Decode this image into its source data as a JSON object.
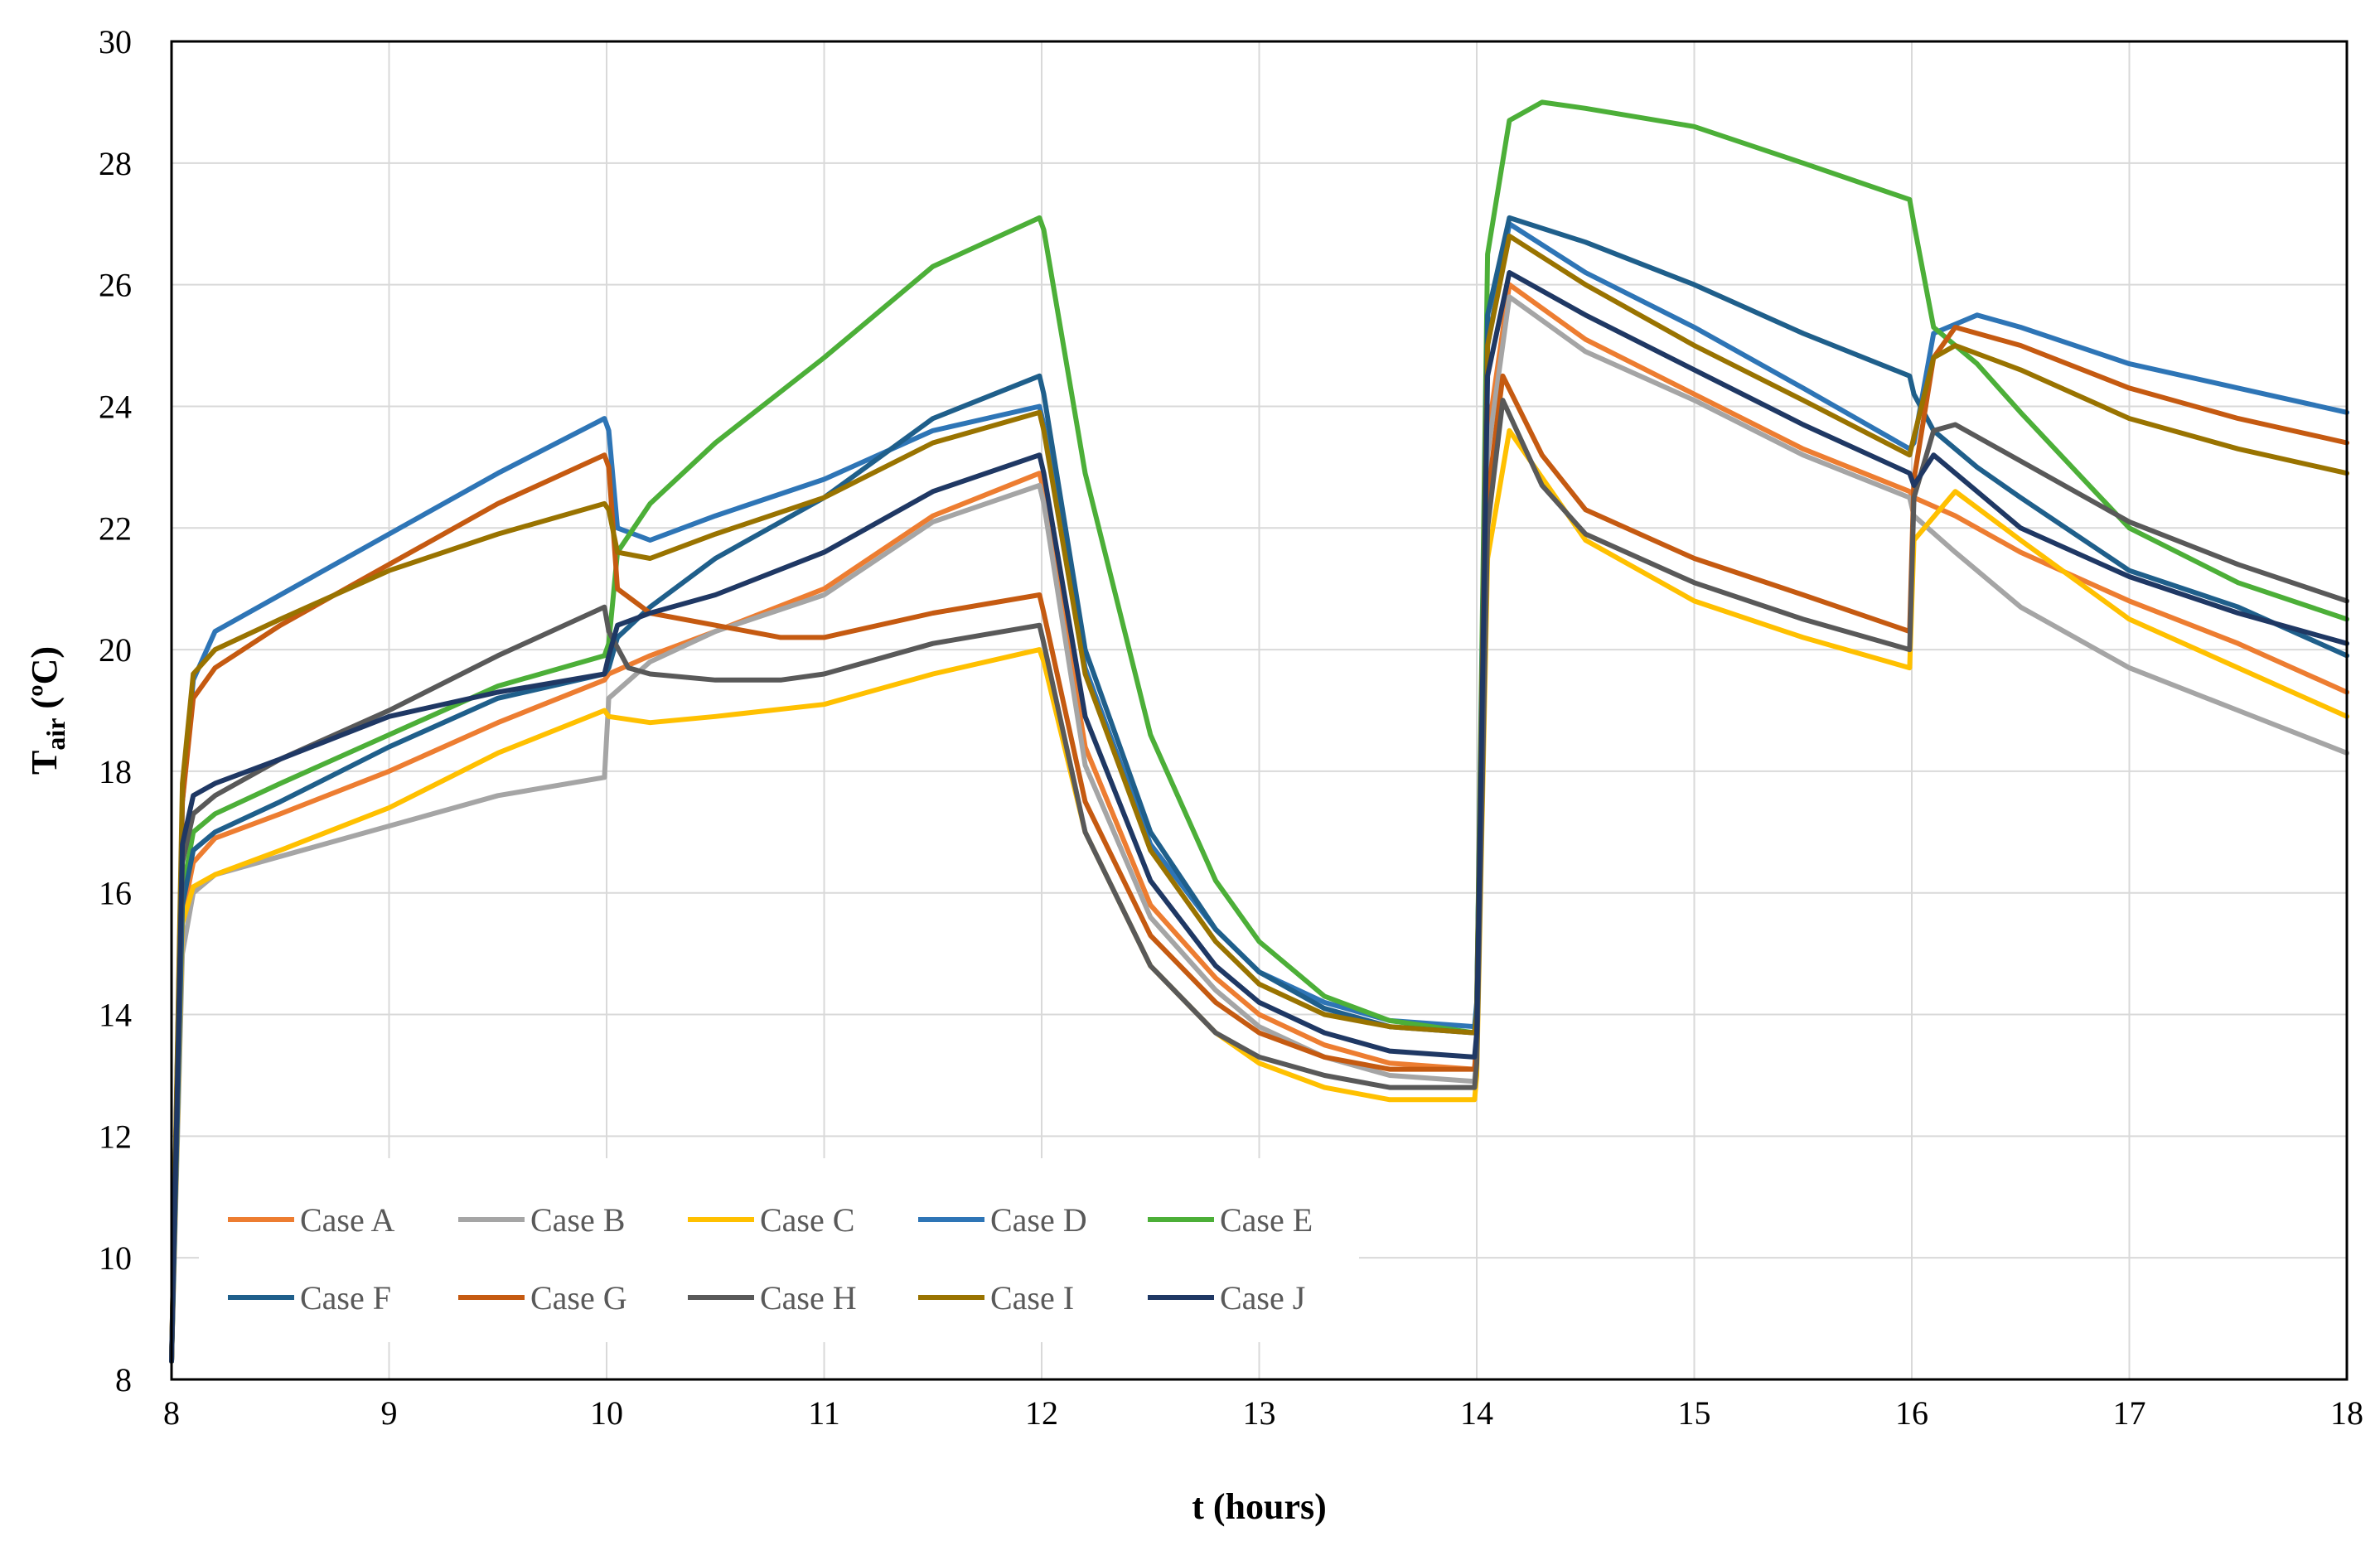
{
  "chart_data": {
    "type": "line",
    "title": "",
    "xlabel": "t (hours)",
    "ylabel_main": "T",
    "ylabel_sub": "air",
    "ylabel_unit": " (ºC)",
    "xlim": [
      8,
      18
    ],
    "ylim": [
      8,
      30
    ],
    "x_ticks": [
      8,
      9,
      10,
      11,
      12,
      13,
      14,
      15,
      16,
      17,
      18
    ],
    "y_ticks": [
      8,
      10,
      12,
      14,
      16,
      18,
      20,
      22,
      24,
      26,
      28,
      30
    ],
    "grid": true,
    "legend_position": "bottom-left",
    "series": [
      {
        "name": "Case A",
        "color": "#ED7D31",
        "x": [
          8.0,
          8.05,
          8.1,
          8.2,
          8.5,
          9.0,
          9.5,
          9.99,
          10.01,
          10.2,
          10.5,
          11.0,
          11.5,
          11.99,
          12.01,
          12.2,
          12.5,
          12.8,
          13.0,
          13.3,
          13.6,
          13.99,
          14.0,
          14.05,
          14.15,
          14.5,
          15.0,
          15.5,
          15.99,
          16.01,
          16.2,
          16.5,
          17.0,
          17.5,
          18.0
        ],
        "y": [
          8.3,
          15.6,
          16.5,
          16.9,
          17.3,
          18.0,
          18.8,
          19.5,
          19.6,
          19.9,
          20.3,
          21.0,
          22.2,
          22.9,
          22.6,
          18.4,
          15.8,
          14.6,
          14.0,
          13.5,
          13.2,
          13.1,
          13.6,
          23.5,
          26.0,
          25.1,
          24.2,
          23.3,
          22.6,
          22.5,
          22.2,
          21.6,
          20.8,
          20.1,
          19.3
        ]
      },
      {
        "name": "Case B",
        "color": "#A5A5A5",
        "x": [
          8.0,
          8.05,
          8.1,
          8.2,
          8.5,
          9.0,
          9.5,
          9.99,
          10.01,
          10.2,
          10.5,
          11.0,
          11.5,
          11.99,
          12.01,
          12.2,
          12.5,
          12.8,
          13.0,
          13.3,
          13.6,
          13.99,
          14.0,
          14.05,
          14.15,
          14.5,
          15.0,
          15.5,
          15.99,
          16.01,
          16.2,
          16.5,
          17.0,
          17.5,
          18.0
        ],
        "y": [
          8.3,
          15.0,
          16.0,
          16.3,
          16.6,
          17.1,
          17.6,
          17.9,
          19.2,
          19.8,
          20.3,
          20.9,
          22.1,
          22.7,
          22.4,
          18.1,
          15.6,
          14.4,
          13.8,
          13.3,
          13.0,
          12.9,
          13.4,
          23.2,
          25.8,
          24.9,
          24.1,
          23.2,
          22.5,
          22.2,
          21.6,
          20.7,
          19.7,
          19.0,
          18.3
        ]
      },
      {
        "name": "Case C",
        "color": "#FFC000",
        "x": [
          8.0,
          8.05,
          8.1,
          8.2,
          8.5,
          9.0,
          9.5,
          9.99,
          10.01,
          10.2,
          10.5,
          11.0,
          11.5,
          11.99,
          12.01,
          12.2,
          12.5,
          12.8,
          13.0,
          13.3,
          13.6,
          13.99,
          14.0,
          14.05,
          14.15,
          14.5,
          15.0,
          15.5,
          15.99,
          16.01,
          16.2,
          16.5,
          17.0,
          17.5,
          18.0
        ],
        "y": [
          8.3,
          15.5,
          16.1,
          16.3,
          16.7,
          17.4,
          18.3,
          19.0,
          18.9,
          18.8,
          18.9,
          19.1,
          19.6,
          20.0,
          19.8,
          17.0,
          14.8,
          13.7,
          13.2,
          12.8,
          12.6,
          12.6,
          13.0,
          21.5,
          23.6,
          21.8,
          20.8,
          20.2,
          19.7,
          21.8,
          22.6,
          21.8,
          20.5,
          19.7,
          18.9
        ]
      },
      {
        "name": "Case D",
        "color": "#2E75B6",
        "x": [
          8.0,
          8.05,
          8.1,
          8.2,
          8.5,
          9.0,
          9.5,
          9.99,
          10.01,
          10.05,
          10.2,
          10.5,
          11.0,
          11.5,
          11.99,
          12.01,
          12.2,
          12.5,
          12.8,
          13.0,
          13.3,
          13.6,
          13.99,
          14.0,
          14.05,
          14.15,
          14.5,
          15.0,
          15.5,
          15.99,
          16.01,
          16.1,
          16.3,
          16.5,
          17.0,
          17.5,
          18.0
        ],
        "y": [
          8.3,
          17.5,
          19.5,
          20.3,
          20.9,
          21.9,
          22.9,
          23.8,
          23.6,
          22.0,
          21.8,
          22.2,
          22.8,
          23.6,
          24.0,
          23.7,
          19.7,
          16.8,
          15.4,
          14.7,
          14.2,
          13.9,
          13.8,
          14.2,
          25.0,
          27.0,
          26.2,
          25.3,
          24.3,
          23.3,
          23.4,
          25.2,
          25.5,
          25.3,
          24.7,
          24.3,
          23.9
        ]
      },
      {
        "name": "Case E",
        "color": "#4CAF38",
        "x": [
          8.0,
          8.05,
          8.1,
          8.2,
          8.5,
          9.0,
          9.5,
          9.99,
          10.01,
          10.05,
          10.2,
          10.5,
          11.0,
          11.5,
          11.99,
          12.01,
          12.2,
          12.5,
          12.8,
          13.0,
          13.3,
          13.6,
          13.99,
          14.0,
          14.05,
          14.15,
          14.3,
          14.5,
          15.0,
          15.5,
          15.99,
          16.01,
          16.1,
          16.3,
          16.5,
          17.0,
          17.5,
          18.0
        ],
        "y": [
          8.3,
          16.0,
          17.0,
          17.3,
          17.8,
          18.6,
          19.4,
          19.9,
          20.1,
          21.6,
          22.4,
          23.4,
          24.8,
          26.3,
          27.1,
          26.9,
          22.9,
          18.6,
          16.2,
          15.2,
          14.3,
          13.9,
          13.7,
          14.1,
          26.5,
          28.7,
          29.0,
          28.9,
          28.6,
          28.0,
          27.4,
          27.0,
          25.3,
          24.7,
          23.9,
          22.0,
          21.1,
          20.5
        ]
      },
      {
        "name": "Case F",
        "color": "#1F5F8B",
        "x": [
          8.0,
          8.05,
          8.1,
          8.2,
          8.5,
          9.0,
          9.5,
          9.99,
          10.01,
          10.05,
          10.2,
          10.5,
          11.0,
          11.5,
          11.99,
          12.01,
          12.2,
          12.5,
          12.8,
          13.0,
          13.3,
          13.6,
          13.99,
          14.0,
          14.05,
          14.15,
          14.5,
          15.0,
          15.5,
          15.99,
          16.01,
          16.1,
          16.3,
          16.5,
          17.0,
          17.5,
          18.0
        ],
        "y": [
          8.3,
          15.8,
          16.7,
          17.0,
          17.5,
          18.4,
          19.2,
          19.6,
          19.7,
          20.2,
          20.7,
          21.5,
          22.5,
          23.8,
          24.5,
          24.2,
          20.0,
          17.0,
          15.4,
          14.7,
          14.1,
          13.8,
          13.7,
          14.1,
          25.5,
          27.1,
          26.7,
          26.0,
          25.2,
          24.5,
          24.2,
          23.6,
          23.0,
          22.5,
          21.3,
          20.7,
          19.9
        ]
      },
      {
        "name": "Case G",
        "color": "#C55A11",
        "x": [
          8.0,
          8.05,
          8.1,
          8.2,
          8.5,
          9.0,
          9.5,
          9.99,
          10.01,
          10.05,
          10.2,
          10.5,
          10.8,
          11.0,
          11.5,
          11.99,
          12.01,
          12.2,
          12.5,
          12.8,
          13.0,
          13.3,
          13.6,
          13.99,
          14.0,
          14.05,
          14.12,
          14.3,
          14.5,
          15.0,
          15.5,
          15.99,
          16.01,
          16.1,
          16.2,
          16.5,
          17.0,
          17.5,
          18.0
        ],
        "y": [
          8.3,
          17.5,
          19.2,
          19.7,
          20.4,
          21.4,
          22.4,
          23.2,
          23.0,
          21.0,
          20.6,
          20.4,
          20.2,
          20.2,
          20.6,
          20.9,
          20.6,
          17.5,
          15.3,
          14.2,
          13.7,
          13.3,
          13.1,
          13.1,
          13.5,
          22.5,
          24.5,
          23.2,
          22.3,
          21.5,
          20.9,
          20.3,
          22.8,
          24.8,
          25.3,
          25.0,
          24.3,
          23.8,
          23.4
        ]
      },
      {
        "name": "Case H",
        "color": "#595959",
        "x": [
          8.0,
          8.05,
          8.1,
          8.2,
          8.5,
          9.0,
          9.5,
          9.99,
          10.01,
          10.1,
          10.2,
          10.5,
          10.8,
          11.0,
          11.5,
          11.99,
          12.01,
          12.2,
          12.5,
          12.8,
          13.0,
          13.3,
          13.6,
          13.99,
          14.0,
          14.05,
          14.12,
          14.3,
          14.5,
          15.0,
          15.5,
          15.99,
          16.01,
          16.1,
          16.2,
          16.5,
          17.0,
          17.5,
          18.0
        ],
        "y": [
          8.3,
          16.5,
          17.3,
          17.6,
          18.2,
          19.0,
          19.9,
          20.7,
          20.3,
          19.7,
          19.6,
          19.5,
          19.5,
          19.6,
          20.1,
          20.4,
          20.1,
          17.0,
          14.8,
          13.7,
          13.3,
          13.0,
          12.8,
          12.8,
          13.2,
          22.0,
          24.1,
          22.7,
          21.9,
          21.1,
          20.5,
          20.0,
          22.5,
          23.6,
          23.7,
          23.1,
          22.1,
          21.4,
          20.8
        ]
      },
      {
        "name": "Case I",
        "color": "#997300",
        "x": [
          8.0,
          8.05,
          8.1,
          8.2,
          8.5,
          9.0,
          9.5,
          9.99,
          10.01,
          10.05,
          10.2,
          10.5,
          11.0,
          11.5,
          11.99,
          12.01,
          12.2,
          12.5,
          12.8,
          13.0,
          13.3,
          13.6,
          13.99,
          14.0,
          14.05,
          14.15,
          14.5,
          15.0,
          15.5,
          15.99,
          16.01,
          16.1,
          16.2,
          16.5,
          17.0,
          17.5,
          18.0
        ],
        "y": [
          8.3,
          17.8,
          19.6,
          20.0,
          20.5,
          21.3,
          21.9,
          22.4,
          22.3,
          21.6,
          21.5,
          21.9,
          22.5,
          23.4,
          23.9,
          23.6,
          19.6,
          16.7,
          15.2,
          14.5,
          14.0,
          13.8,
          13.7,
          14.0,
          25.0,
          26.8,
          26.0,
          25.0,
          24.1,
          23.2,
          23.5,
          24.8,
          25.0,
          24.6,
          23.8,
          23.3,
          22.9
        ]
      },
      {
        "name": "Case J",
        "color": "#1F3864",
        "x": [
          8.0,
          8.05,
          8.1,
          8.2,
          8.5,
          9.0,
          9.5,
          9.99,
          10.01,
          10.05,
          10.2,
          10.5,
          11.0,
          11.5,
          11.99,
          12.01,
          12.2,
          12.5,
          12.8,
          13.0,
          13.3,
          13.6,
          13.99,
          14.0,
          14.05,
          14.15,
          14.5,
          15.0,
          15.5,
          15.99,
          16.01,
          16.1,
          16.3,
          16.5,
          17.0,
          17.5,
          18.0
        ],
        "y": [
          8.3,
          16.8,
          17.6,
          17.8,
          18.2,
          18.9,
          19.3,
          19.6,
          19.9,
          20.4,
          20.6,
          20.9,
          21.6,
          22.6,
          23.2,
          22.9,
          18.9,
          16.2,
          14.8,
          14.2,
          13.7,
          13.4,
          13.3,
          13.7,
          24.5,
          26.2,
          25.5,
          24.6,
          23.7,
          22.9,
          22.7,
          23.2,
          22.6,
          22.0,
          21.2,
          20.6,
          20.1
        ]
      }
    ]
  }
}
